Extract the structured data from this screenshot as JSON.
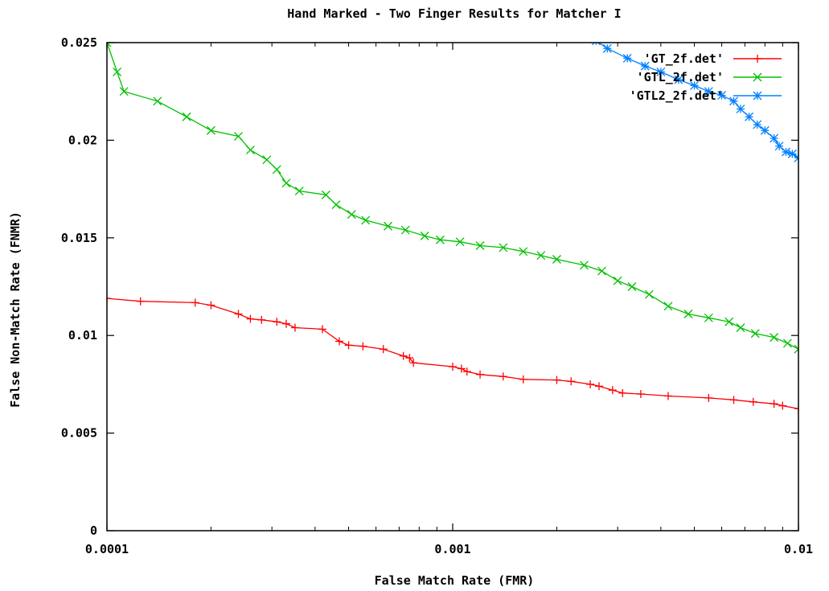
{
  "chart_data": {
    "type": "line",
    "title": "Hand Marked - Two Finger Results for Matcher I",
    "xlabel": "False Match Rate (FMR)",
    "ylabel": "False Non-Match Rate (FNMR)",
    "xscale": "log",
    "xlim": [
      0.0001,
      0.01
    ],
    "ylim": [
      0,
      0.025
    ],
    "xticks": [
      0.0001,
      0.001,
      0.01
    ],
    "xtick_labels": [
      "0.0001",
      "0.001",
      "0.01"
    ],
    "yticks": [
      0,
      0.005,
      0.01,
      0.015,
      0.02,
      0.025
    ],
    "ytick_labels": [
      "0",
      "0.005",
      "0.01",
      "0.015",
      "0.02",
      "0.025"
    ],
    "grid": false,
    "legend_position": "top-right",
    "series": [
      {
        "name": "'GT_2f.det'",
        "color": "#ff0000",
        "marker": "plus",
        "points": [
          [
            0.0001,
            0.0119
          ],
          [
            0.000125,
            0.01175
          ],
          [
            0.00018,
            0.01168
          ],
          [
            0.0002,
            0.01155
          ],
          [
            0.00024,
            0.0111
          ],
          [
            0.00026,
            0.01085
          ],
          [
            0.00028,
            0.0108
          ],
          [
            0.00031,
            0.0107
          ],
          [
            0.00033,
            0.0106
          ],
          [
            0.00035,
            0.0104
          ],
          [
            0.00042,
            0.01032
          ],
          [
            0.00047,
            0.0097
          ],
          [
            0.0005,
            0.0095
          ],
          [
            0.00055,
            0.00945
          ],
          [
            0.00063,
            0.0093
          ],
          [
            0.00072,
            0.00895
          ],
          [
            0.00075,
            0.00885
          ],
          [
            0.00077,
            0.0086
          ],
          [
            0.001,
            0.0084
          ],
          [
            0.00106,
            0.0083
          ],
          [
            0.0011,
            0.00815
          ],
          [
            0.0012,
            0.008
          ],
          [
            0.0014,
            0.0079
          ],
          [
            0.0016,
            0.00775
          ],
          [
            0.002,
            0.00772
          ],
          [
            0.0022,
            0.00765
          ],
          [
            0.0025,
            0.0075
          ],
          [
            0.00265,
            0.0074
          ],
          [
            0.0029,
            0.0072
          ],
          [
            0.0031,
            0.00705
          ],
          [
            0.0035,
            0.007
          ],
          [
            0.0042,
            0.0069
          ],
          [
            0.0055,
            0.0068
          ],
          [
            0.0065,
            0.0067
          ],
          [
            0.0074,
            0.0066
          ],
          [
            0.0085,
            0.0065
          ],
          [
            0.009,
            0.0064
          ],
          [
            0.01,
            0.00625
          ]
        ]
      },
      {
        "name": "'GTL_2f.det'",
        "color": "#00c000",
        "marker": "cross",
        "points": [
          [
            0.0001,
            0.025
          ],
          [
            0.000107,
            0.0235
          ],
          [
            0.000112,
            0.0225
          ],
          [
            0.00014,
            0.022
          ],
          [
            0.00017,
            0.0212
          ],
          [
            0.0002,
            0.0205
          ],
          [
            0.00024,
            0.0202
          ],
          [
            0.00026,
            0.0195
          ],
          [
            0.00029,
            0.019
          ],
          [
            0.00031,
            0.0185
          ],
          [
            0.00033,
            0.0178
          ],
          [
            0.00036,
            0.0174
          ],
          [
            0.00043,
            0.0172
          ],
          [
            0.00046,
            0.0167
          ],
          [
            0.00051,
            0.0162
          ],
          [
            0.00056,
            0.0159
          ],
          [
            0.00065,
            0.0156
          ],
          [
            0.00073,
            0.0154
          ],
          [
            0.00083,
            0.0151
          ],
          [
            0.00092,
            0.0149
          ],
          [
            0.00105,
            0.0148
          ],
          [
            0.0012,
            0.0146
          ],
          [
            0.0014,
            0.0145
          ],
          [
            0.0016,
            0.0143
          ],
          [
            0.0018,
            0.0141
          ],
          [
            0.002,
            0.0139
          ],
          [
            0.0024,
            0.0136
          ],
          [
            0.0027,
            0.0133
          ],
          [
            0.003,
            0.0128
          ],
          [
            0.0033,
            0.0125
          ],
          [
            0.0037,
            0.0121
          ],
          [
            0.0042,
            0.0115
          ],
          [
            0.0048,
            0.0111
          ],
          [
            0.0055,
            0.0109
          ],
          [
            0.0063,
            0.0107
          ],
          [
            0.0068,
            0.0104
          ],
          [
            0.0075,
            0.0101
          ],
          [
            0.0085,
            0.0099
          ],
          [
            0.0093,
            0.0096
          ],
          [
            0.01,
            0.0093
          ]
        ]
      },
      {
        "name": "'GTL2_2f.det'",
        "color": "#0080ff",
        "marker": "star",
        "points": [
          [
            0.0026,
            0.02509
          ],
          [
            0.0028,
            0.0247
          ],
          [
            0.0032,
            0.0242
          ],
          [
            0.0036,
            0.0238
          ],
          [
            0.004,
            0.0235
          ],
          [
            0.0045,
            0.0231
          ],
          [
            0.005,
            0.0228
          ],
          [
            0.0055,
            0.0225
          ],
          [
            0.006,
            0.0223
          ],
          [
            0.0065,
            0.022
          ],
          [
            0.0068,
            0.0216
          ],
          [
            0.0072,
            0.0212
          ],
          [
            0.0076,
            0.0208
          ],
          [
            0.008,
            0.0205
          ],
          [
            0.0085,
            0.0201
          ],
          [
            0.0088,
            0.0197
          ],
          [
            0.0092,
            0.0194
          ],
          [
            0.0096,
            0.0193
          ],
          [
            0.01,
            0.0191
          ]
        ]
      }
    ]
  }
}
